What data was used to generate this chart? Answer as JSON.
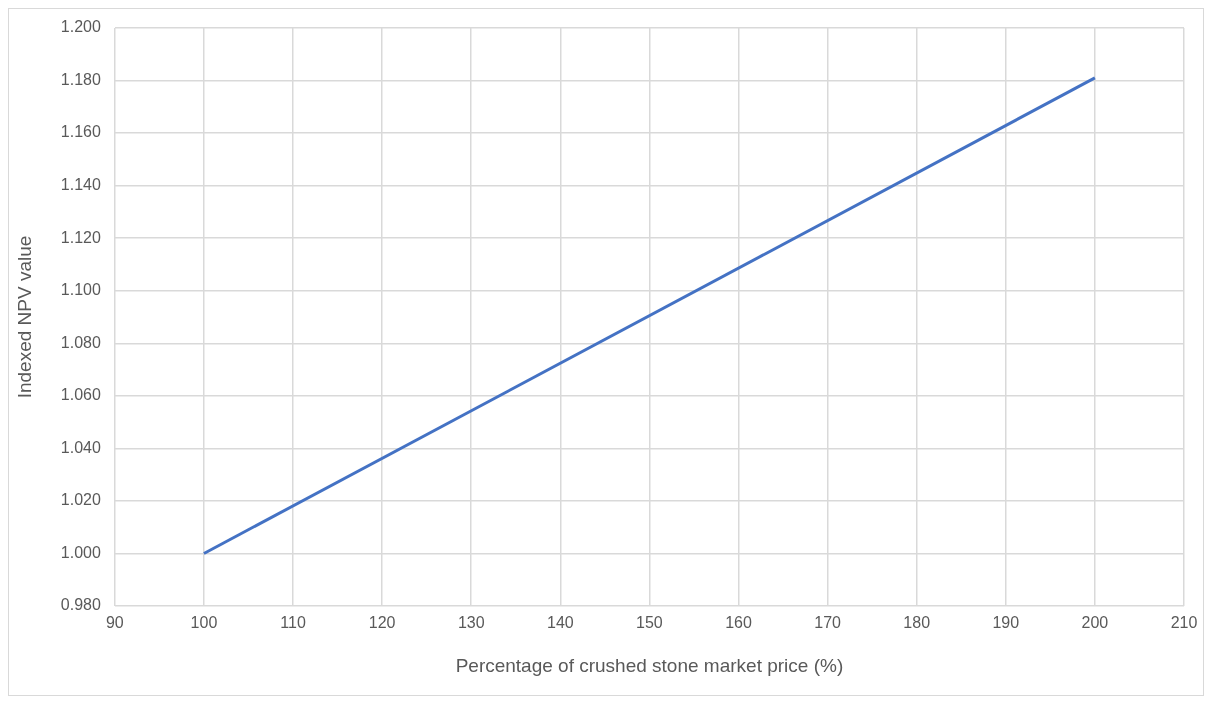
{
  "chart_data": {
    "type": "line",
    "xlabel": "Percentage of crushed stone market price (%)",
    "ylabel": "Indexed NPV value",
    "series": [
      {
        "color": "#4472c4",
        "x": [
          100,
          200
        ],
        "values": [
          1.0,
          1.181
        ]
      }
    ],
    "xlim": [
      90,
      210
    ],
    "xticks": [
      90,
      100,
      110,
      120,
      130,
      140,
      150,
      160,
      170,
      180,
      190,
      200,
      210
    ],
    "ylim": [
      0.98,
      1.2
    ],
    "yticks": [
      {
        "value": 0.98,
        "label": "0.980"
      },
      {
        "value": 1.0,
        "label": "1.000"
      },
      {
        "value": 1.02,
        "label": "1.020"
      },
      {
        "value": 1.04,
        "label": "1.040"
      },
      {
        "value": 1.06,
        "label": "1.060"
      },
      {
        "value": 1.08,
        "label": "1.080"
      },
      {
        "value": 1.1,
        "label": "1.100"
      },
      {
        "value": 1.12,
        "label": "1.120"
      },
      {
        "value": 1.14,
        "label": "1.140"
      },
      {
        "value": 1.16,
        "label": "1.160"
      },
      {
        "value": 1.18,
        "label": "1.180"
      },
      {
        "value": 1.2,
        "label": "1.200"
      }
    ],
    "grid": true,
    "legend": false,
    "marker": "none",
    "line_style": "solid"
  }
}
